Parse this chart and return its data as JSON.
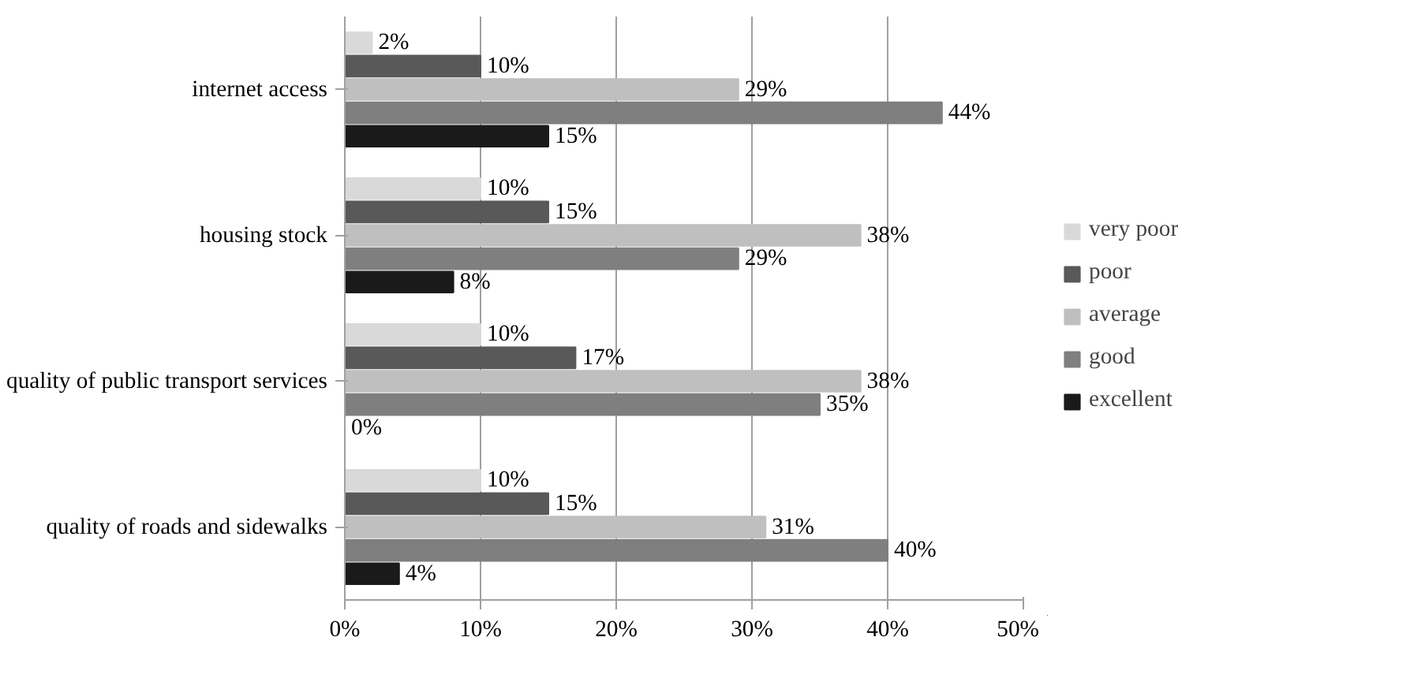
{
  "chart_data": {
    "type": "bar",
    "orientation": "horizontal",
    "categories": [
      "internet access",
      "housing stock",
      "quality of public transport services",
      "quality of roads and sidewalks"
    ],
    "series": [
      {
        "name": "very poor",
        "color": "#d9d9d9",
        "values": [
          2,
          10,
          10,
          10
        ],
        "value_labels": [
          "2%",
          "10%",
          "10%",
          "10%"
        ]
      },
      {
        "name": "poor",
        "color": "#595959",
        "values": [
          10,
          15,
          17,
          15
        ],
        "value_labels": [
          "10%",
          "15%",
          "17%",
          "15%"
        ]
      },
      {
        "name": "average",
        "color": "#bfbfbf",
        "values": [
          29,
          38,
          38,
          31
        ],
        "value_labels": [
          "29%",
          "38%",
          "38%",
          "31%"
        ]
      },
      {
        "name": "good",
        "color": "#7f7f7f",
        "values": [
          44,
          29,
          35,
          40
        ],
        "value_labels": [
          "44%",
          "29%",
          "35%",
          "40%"
        ]
      },
      {
        "name": "excellent",
        "color": "#1a1a1a",
        "values": [
          15,
          8,
          0,
          4
        ],
        "value_labels": [
          "15%",
          "8%",
          "0%",
          "4%"
        ]
      }
    ],
    "xlim": [
      0,
      50
    ],
    "xticks": [
      {
        "value": 0,
        "label": "0%"
      },
      {
        "value": 10,
        "label": "10%"
      },
      {
        "value": 20,
        "label": "20%"
      },
      {
        "value": 30,
        "label": "30%"
      },
      {
        "value": 40,
        "label": "40%"
      },
      {
        "value": 50,
        "label": "50%"
      }
    ],
    "grid": "x",
    "legend": "right"
  }
}
